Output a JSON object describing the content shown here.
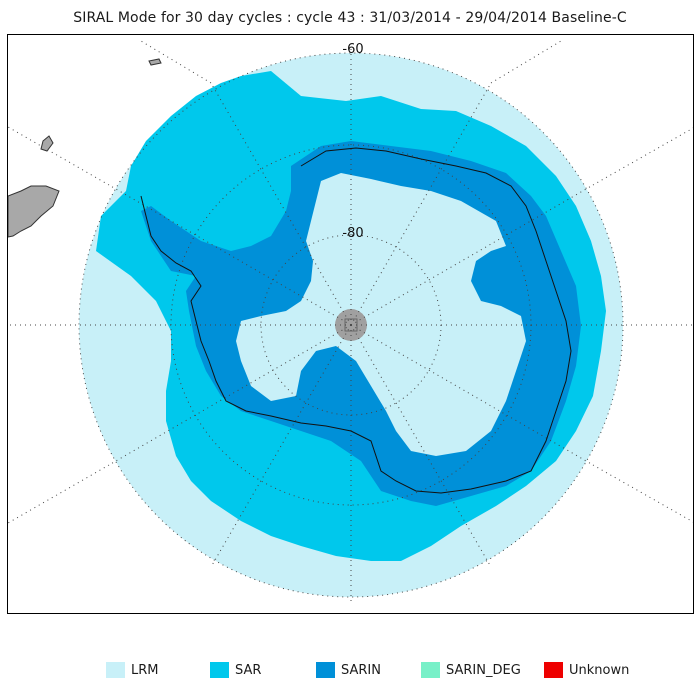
{
  "title": "SIRAL Mode for 30 day cycles : cycle 43 : 31/03/2014 - 29/04/2014 Baseline-C",
  "map": {
    "projection": "south polar stereographic",
    "lat_labels": [
      "-60",
      "-80"
    ],
    "colors": {
      "ocean_outside": "#ffffff",
      "lrm": "#c8f0f8",
      "sar": "#00c8ec",
      "sarin": "#0090d8",
      "sarin_deg": "#78f0c8",
      "unknown": "#ee0000",
      "land_outside": "#a8a8a8",
      "pole_hole": "#a0a0a0"
    }
  },
  "legend": [
    {
      "label": "LRM",
      "color": "#c8f0f8"
    },
    {
      "label": "SAR",
      "color": "#00c8ec"
    },
    {
      "label": "SARIN",
      "color": "#0090d8"
    },
    {
      "label": "SARIN_DEG",
      "color": "#78f0c8"
    },
    {
      "label": "Unknown",
      "color": "#ee0000"
    }
  ]
}
